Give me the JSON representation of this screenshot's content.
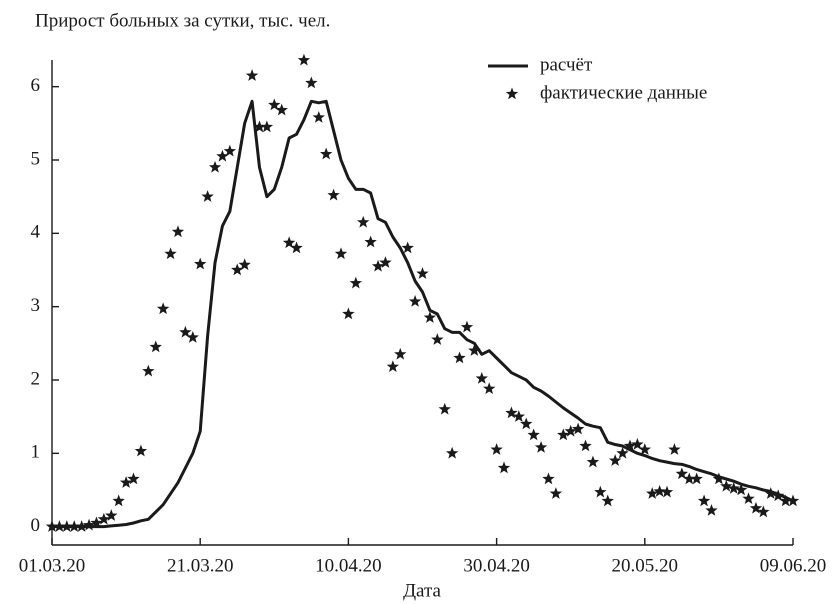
{
  "chart_data": {
    "type": "line",
    "title": "Прирост больных за сутки, тыс. чел.",
    "xlabel": "Дата",
    "x": [
      "01.03.20",
      "02.03.20",
      "03.03.20",
      "04.03.20",
      "05.03.20",
      "06.03.20",
      "07.03.20",
      "08.03.20",
      "09.03.20",
      "10.03.20",
      "11.03.20",
      "12.03.20",
      "13.03.20",
      "14.03.20",
      "15.03.20",
      "16.03.20",
      "17.03.20",
      "18.03.20",
      "19.03.20",
      "20.03.20",
      "21.03.20",
      "22.03.20",
      "23.03.20",
      "24.03.20",
      "25.03.20",
      "26.03.20",
      "27.03.20",
      "28.03.20",
      "29.03.20",
      "30.03.20",
      "31.03.20",
      "01.04.20",
      "02.04.20",
      "03.04.20",
      "04.04.20",
      "05.04.20",
      "06.04.20",
      "07.04.20",
      "08.04.20",
      "09.04.20",
      "10.04.20",
      "11.04.20",
      "12.04.20",
      "13.04.20",
      "14.04.20",
      "15.04.20",
      "16.04.20",
      "17.04.20",
      "18.04.20",
      "19.04.20",
      "20.04.20",
      "21.04.20",
      "22.04.20",
      "23.04.20",
      "24.04.20",
      "25.04.20",
      "26.04.20",
      "27.04.20",
      "28.04.20",
      "29.04.20",
      "30.04.20",
      "01.05.20",
      "02.05.20",
      "03.05.20",
      "04.05.20",
      "05.05.20",
      "06.05.20",
      "07.05.20",
      "08.05.20",
      "09.05.20",
      "10.05.20",
      "11.05.20",
      "12.05.20",
      "13.05.20",
      "14.05.20",
      "15.05.20",
      "16.05.20",
      "17.05.20",
      "18.05.20",
      "19.05.20",
      "20.05.20",
      "21.05.20",
      "22.05.20",
      "23.05.20",
      "24.05.20",
      "25.05.20",
      "26.05.20",
      "27.05.20",
      "28.05.20",
      "29.05.20",
      "30.05.20",
      "31.05.20",
      "01.06.20",
      "02.06.20",
      "03.06.20",
      "04.06.20",
      "05.06.20",
      "06.06.20",
      "07.06.20",
      "08.06.20",
      "09.06.20"
    ],
    "series": [
      {
        "name": "расчёт",
        "color": "#1a1a1a",
        "style": "line",
        "values": [
          0,
          0,
          0,
          0,
          0,
          0,
          0,
          0,
          0.01,
          0.02,
          0.03,
          0.05,
          0.08,
          0.1,
          0.2,
          0.3,
          0.45,
          0.6,
          0.8,
          1.0,
          1.3,
          2.6,
          3.6,
          4.1,
          4.3,
          4.9,
          5.5,
          5.8,
          4.9,
          4.5,
          4.6,
          4.9,
          5.3,
          5.35,
          5.55,
          5.8,
          5.78,
          5.8,
          5.4,
          5.0,
          4.75,
          4.6,
          4.6,
          4.55,
          4.2,
          4.15,
          3.95,
          3.8,
          3.6,
          3.35,
          3.2,
          2.95,
          2.9,
          2.7,
          2.65,
          2.65,
          2.55,
          2.5,
          2.35,
          2.4,
          2.3,
          2.2,
          2.1,
          2.05,
          2.0,
          1.9,
          1.85,
          1.78,
          1.7,
          1.62,
          1.55,
          1.48,
          1.4,
          1.37,
          1.35,
          1.15,
          1.12,
          1.1,
          1.05,
          1.0,
          0.97,
          0.93,
          0.9,
          0.88,
          0.86,
          0.85,
          0.82,
          0.78,
          0.75,
          0.72,
          0.68,
          0.65,
          0.62,
          0.58,
          0.55,
          0.53,
          0.5,
          0.48,
          0.44,
          0.4,
          0.35
        ]
      },
      {
        "name": "фактические данные",
        "color": "#1a1a1a",
        "style": "star",
        "values": [
          0,
          0,
          0,
          0,
          0,
          0.02,
          0.05,
          0.1,
          0.15,
          0.35,
          0.6,
          0.65,
          1.03,
          2.12,
          2.45,
          2.97,
          3.72,
          4.02,
          2.65,
          2.58,
          3.58,
          4.5,
          4.9,
          5.05,
          5.12,
          3.5,
          3.57,
          6.15,
          5.45,
          5.45,
          5.75,
          5.68,
          3.87,
          3.8,
          6.36,
          6.05,
          5.58,
          5.08,
          4.52,
          3.72,
          2.9,
          3.32,
          4.15,
          3.88,
          3.55,
          3.6,
          2.18,
          2.35,
          3.8,
          3.07,
          3.45,
          2.85,
          2.55,
          1.6,
          1.0,
          2.3,
          2.72,
          2.4,
          2.02,
          1.88,
          1.05,
          0.8,
          1.55,
          1.5,
          1.4,
          1.25,
          1.08,
          0.65,
          0.45,
          1.25,
          1.3,
          1.33,
          1.1,
          0.88,
          0.47,
          0.35,
          0.9,
          1.0,
          1.1,
          1.12,
          1.05,
          0.45,
          0.48,
          0.47,
          1.05,
          0.72,
          0.65,
          0.65,
          0.35,
          0.22,
          0.65,
          0.55,
          0.52,
          0.5,
          0.38,
          0.25,
          0.2,
          0.45,
          0.42,
          0.35,
          0.35
        ]
      }
    ],
    "xlim": [
      "01.03.20",
      "09.06.20"
    ],
    "xticks": [
      "01.03.20",
      "21.03.20",
      "10.04.20",
      "30.04.20",
      "20.05.20",
      "09.06.20"
    ],
    "ylim": [
      -0.25,
      6.5
    ],
    "yticks": [
      0,
      1,
      2,
      3,
      4,
      5,
      6
    ],
    "legend": "upper right"
  }
}
